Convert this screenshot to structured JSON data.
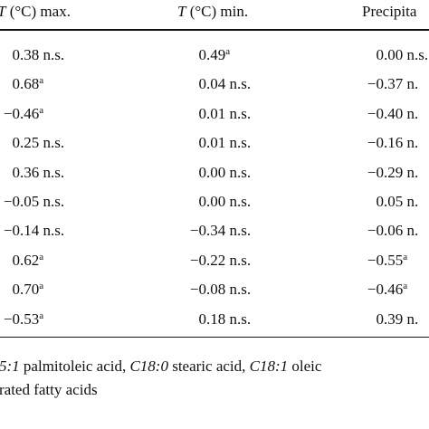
{
  "table": {
    "headers": [
      {
        "var": "T",
        "text": "(°C) max."
      },
      {
        "var": "T",
        "text": "(°C) min."
      },
      {
        "text": "Precipita"
      }
    ],
    "rows": [
      [
        {
          "text": "0.38 n.s."
        },
        {
          "text": "0.49",
          "sup": "a"
        },
        {
          "text": "0.00 n.s."
        }
      ],
      [
        {
          "text": "0.68",
          "sup": "a"
        },
        {
          "text": "0.04 n.s."
        },
        {
          "text": "−0.37 n."
        }
      ],
      [
        {
          "text": "−0.46",
          "sup": "a"
        },
        {
          "text": "0.01 n.s."
        },
        {
          "text": "−0.40 n."
        }
      ],
      [
        {
          "text": "0.25 n.s."
        },
        {
          "text": "0.01 n.s."
        },
        {
          "text": "−0.16 n."
        }
      ],
      [
        {
          "text": "0.36 n.s."
        },
        {
          "text": "0.00 n.s."
        },
        {
          "text": "−0.29 n."
        }
      ],
      [
        {
          "text": "−0.05 n.s."
        },
        {
          "text": "0.00 n.s."
        },
        {
          "text": "0.05 n."
        }
      ],
      [
        {
          "text": "−0.14 n.s."
        },
        {
          "text": "−0.34 n.s."
        },
        {
          "text": "−0.06 n."
        }
      ],
      [
        {
          "text": "0.62",
          "sup": "a"
        },
        {
          "text": "−0.22 n.s."
        },
        {
          "text": "−0.55",
          "sup": "a"
        }
      ],
      [
        {
          "text": "0.70",
          "sup": "a"
        },
        {
          "text": "−0.08 n.s."
        },
        {
          "text": "−0.46",
          "sup": "a"
        }
      ],
      [
        {
          "text": "−0.53",
          "sup": "a"
        },
        {
          "text": "0.18 n.s."
        },
        {
          "text": "0.39 n."
        }
      ]
    ]
  },
  "footnote": {
    "lines": [
      [
        {
          "text": "5:1",
          "italic": true
        },
        {
          "text": " palmitoleic acid, "
        },
        {
          "text": "C18:0",
          "italic": true
        },
        {
          "text": " stearic acid, "
        },
        {
          "text": "C18:1",
          "italic": true
        },
        {
          "text": " oleic"
        }
      ],
      [
        {
          "text": "rated fatty acids"
        }
      ]
    ]
  }
}
